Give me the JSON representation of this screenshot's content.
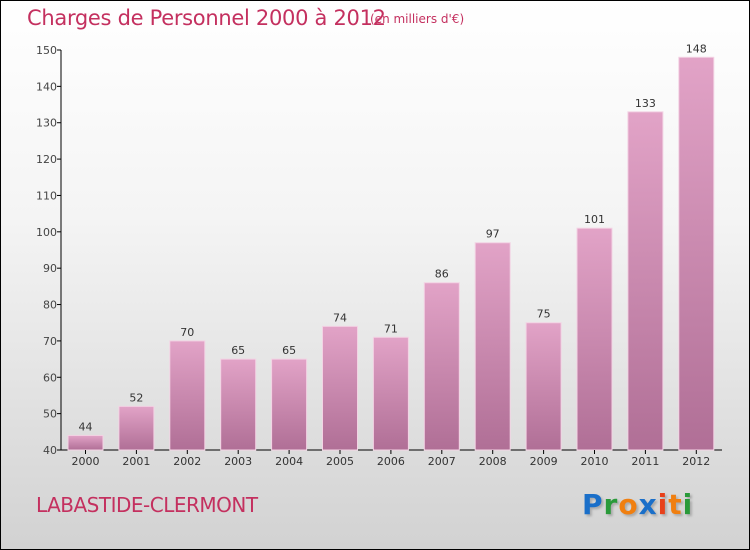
{
  "chart_data": {
    "type": "bar",
    "title": "Charges de Personnel 2000 à 2012",
    "subtitle": "(en milliers d'€)",
    "categories": [
      "2000",
      "2001",
      "2002",
      "2003",
      "2004",
      "2005",
      "2006",
      "2007",
      "2008",
      "2009",
      "2010",
      "2011",
      "2012"
    ],
    "values": [
      44,
      52,
      70,
      65,
      65,
      74,
      71,
      86,
      97,
      75,
      101,
      133,
      148
    ],
    "xlabel": "",
    "ylabel": "",
    "ylim": [
      40,
      150
    ],
    "yticks": [
      40,
      50,
      60,
      70,
      80,
      90,
      100,
      110,
      120,
      130,
      140,
      150
    ],
    "grid": false,
    "colors": {
      "bar_top": "#e2a3c7",
      "bar_bottom": "#b06f96",
      "title": "#c4305f"
    }
  },
  "footer": {
    "city": "LABASTIDE-CLERMONT"
  },
  "logo": {
    "letters": [
      {
        "ch": "P",
        "color": "#1a6fc9"
      },
      {
        "ch": "r",
        "color": "#2a9a3a"
      },
      {
        "ch": "o",
        "color": "#f07f10"
      },
      {
        "ch": "x",
        "color": "#1a6fc9"
      },
      {
        "ch": "i",
        "color": "#e8401a"
      },
      {
        "ch": "t",
        "color": "#f07f10"
      },
      {
        "ch": "i",
        "color": "#2a9a3a"
      }
    ]
  }
}
